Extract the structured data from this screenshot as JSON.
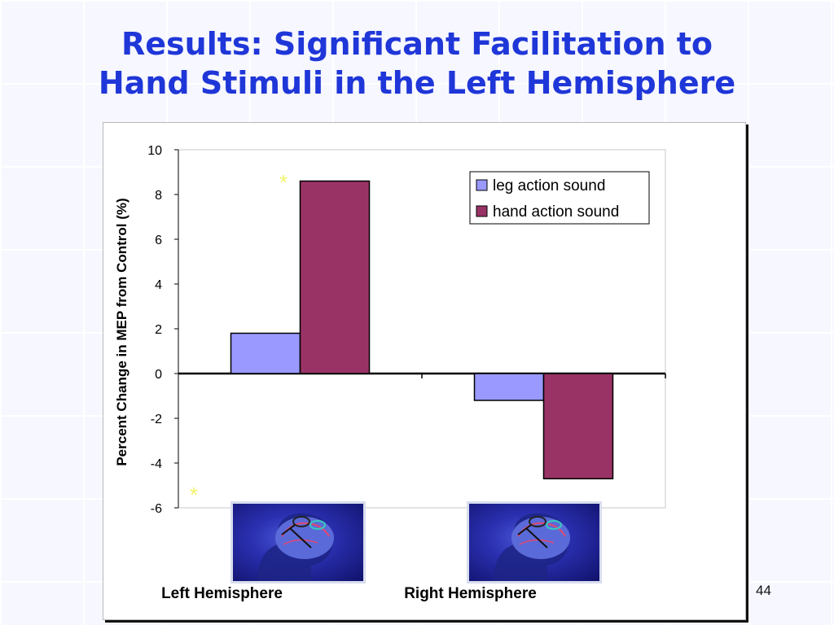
{
  "slide": {
    "title_line1": "Results: Significant Facilitation to",
    "title_line2": "Hand Stimuli in the Left Hemisphere",
    "page_number": "44",
    "significance_marker": "*"
  },
  "colors": {
    "title": "#1f36d8",
    "leg_series": "#9999ff",
    "hand_series": "#993366",
    "significance_marker": "#f2f36b"
  },
  "chart_data": {
    "type": "bar",
    "categories": [
      "Left Hemisphere",
      "Right Hemisphere"
    ],
    "series": [
      {
        "name": "leg action sound",
        "values": [
          1.8,
          -1.2
        ],
        "color": "#9999ff"
      },
      {
        "name": "hand action sound",
        "values": [
          8.6,
          -4.7
        ],
        "color": "#993366"
      }
    ],
    "ylabel": "Percent Change in MEP from Control (%)",
    "xlabel": "",
    "ylim": [
      -6,
      10
    ],
    "yticks": [
      10,
      8,
      6,
      4,
      2,
      0,
      -2,
      -4,
      -6
    ],
    "grid": false,
    "legend": "top-right"
  }
}
